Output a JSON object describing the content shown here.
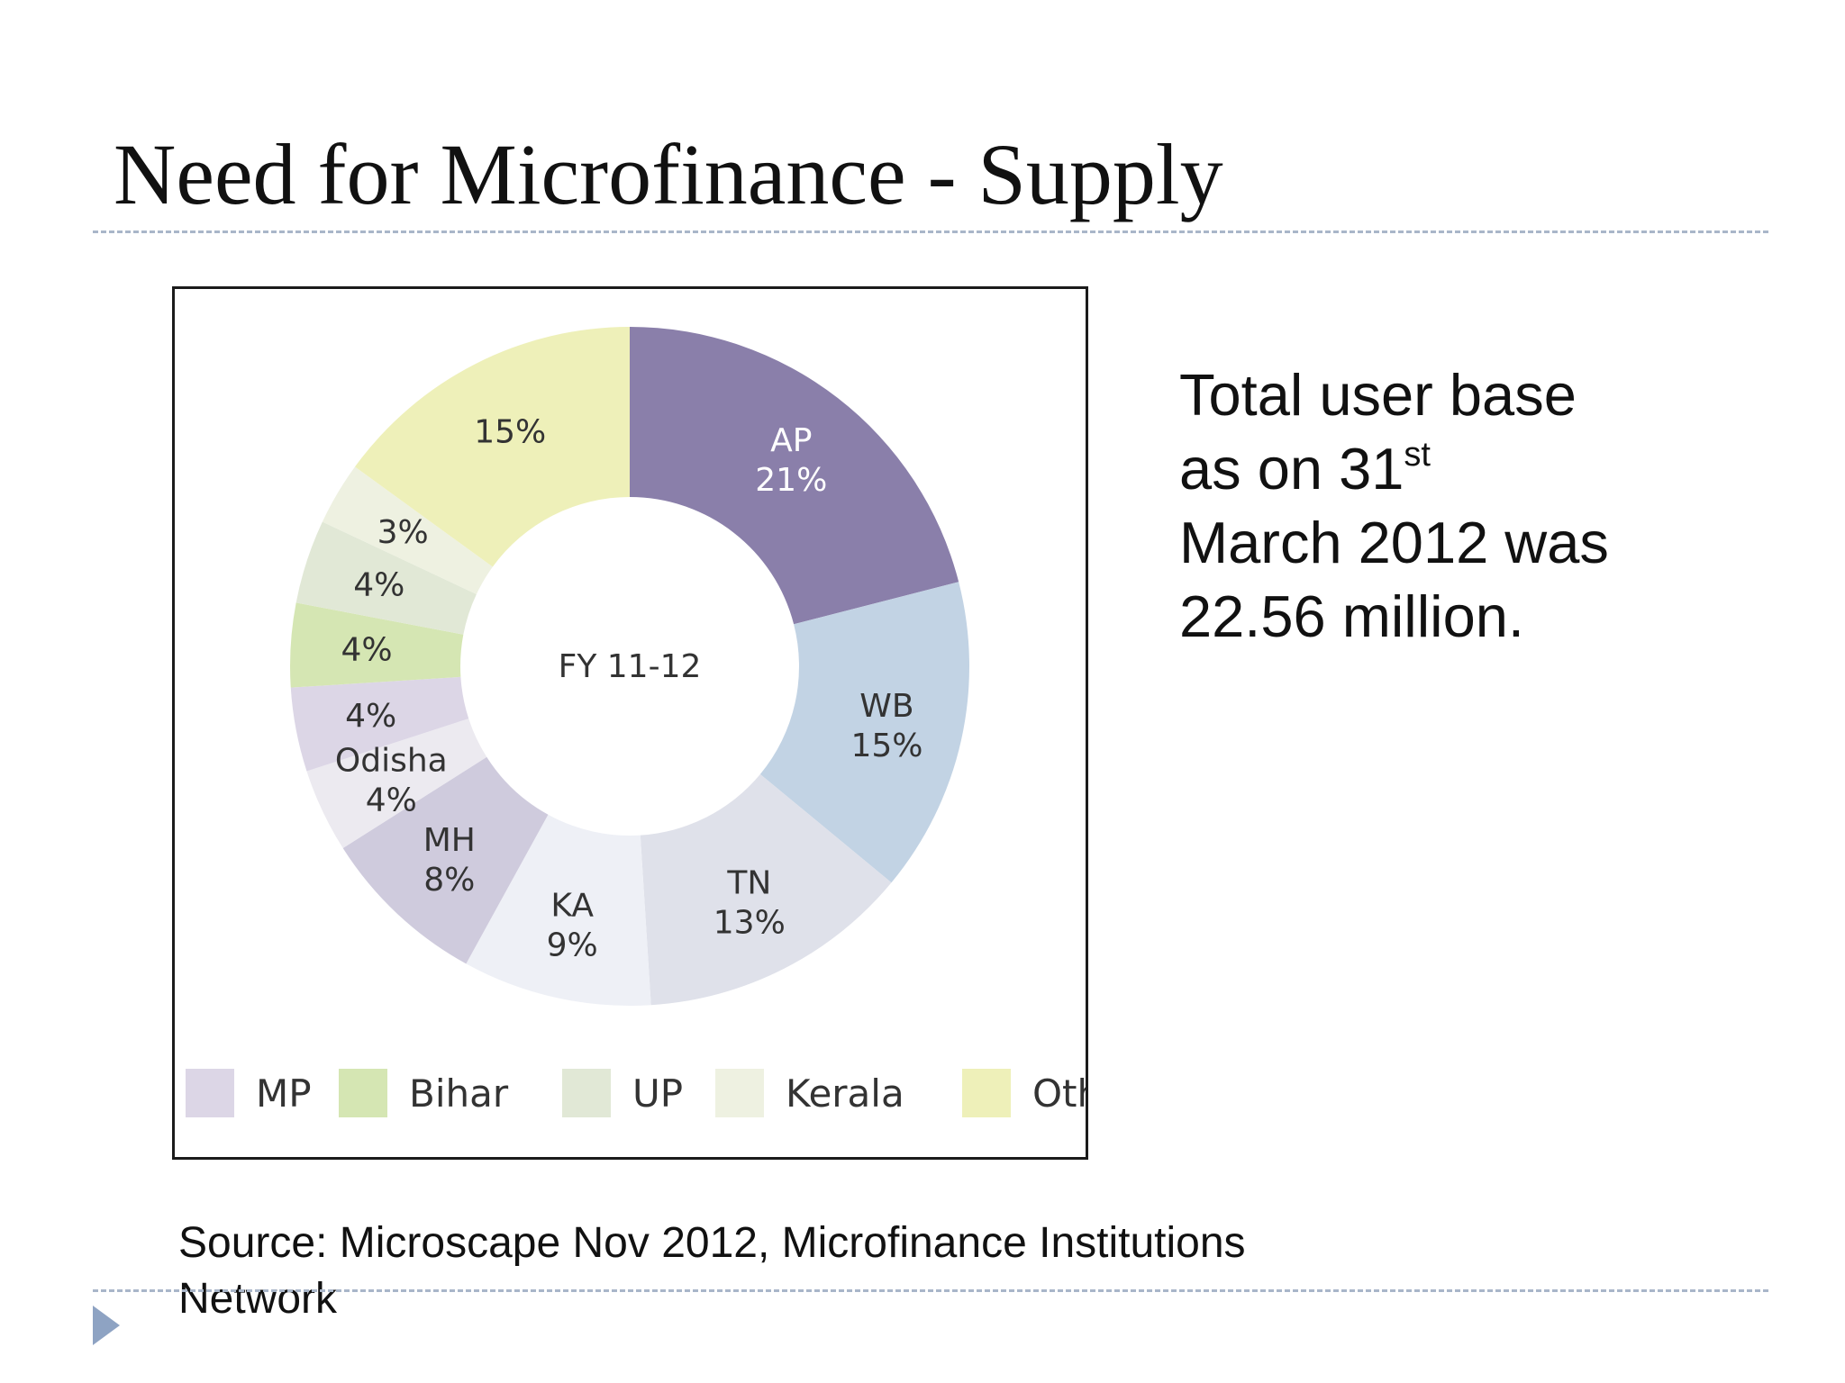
{
  "slide": {
    "title": "Need for Microfinance - Supply",
    "user_base": {
      "line1": [
        "Total",
        "user",
        "base"
      ],
      "line2": [
        "as",
        "on"
      ],
      "line2_number": "31",
      "line2_suffix": "st",
      "line3": "March 2012 was",
      "line4": "22.56 million."
    },
    "source": "Source: Microscape Nov 2012, Microfinance Institutions Network"
  },
  "chart_data": {
    "type": "pie",
    "style": "donut",
    "center_label": "FY 11-12",
    "slices": [
      {
        "label": "AP",
        "value": 21,
        "display": "21%",
        "color": "#8a7faa"
      },
      {
        "label": "WB",
        "value": 15,
        "display": "15%",
        "color": "#c2d3e4"
      },
      {
        "label": "TN",
        "value": 13,
        "display": "13%",
        "color": "#dfe1ea"
      },
      {
        "label": "KA",
        "value": 9,
        "display": "9%",
        "color": "#eef0f6"
      },
      {
        "label": "MH",
        "value": 8,
        "display": "8%",
        "color": "#cfcbdd"
      },
      {
        "label": "Odisha",
        "value": 4,
        "display": "4%",
        "color": "#eceaf0"
      },
      {
        "label": "",
        "value": 4,
        "display": "4%",
        "color": "#dcd6e6"
      },
      {
        "label": "",
        "value": 4,
        "display": "4%",
        "color": "#d5e6b3"
      },
      {
        "label": "",
        "value": 4,
        "display": "4%",
        "color": "#e1e8d6"
      },
      {
        "label": "",
        "value": 3,
        "display": "3%",
        "color": "#eef1e1"
      },
      {
        "label": "",
        "value": 15,
        "display": "15%",
        "color": "#eef0b9"
      }
    ],
    "legend": [
      {
        "name": "MP",
        "color": "#dcd6e6"
      },
      {
        "name": "Bihar",
        "color": "#d5e6b3"
      },
      {
        "name": "UP",
        "color": "#e1e8d6"
      },
      {
        "name": "Kerala",
        "color": "#eef1e1"
      },
      {
        "name": "Others",
        "color": "#eef0b9"
      }
    ],
    "legend_position": "bottom"
  }
}
